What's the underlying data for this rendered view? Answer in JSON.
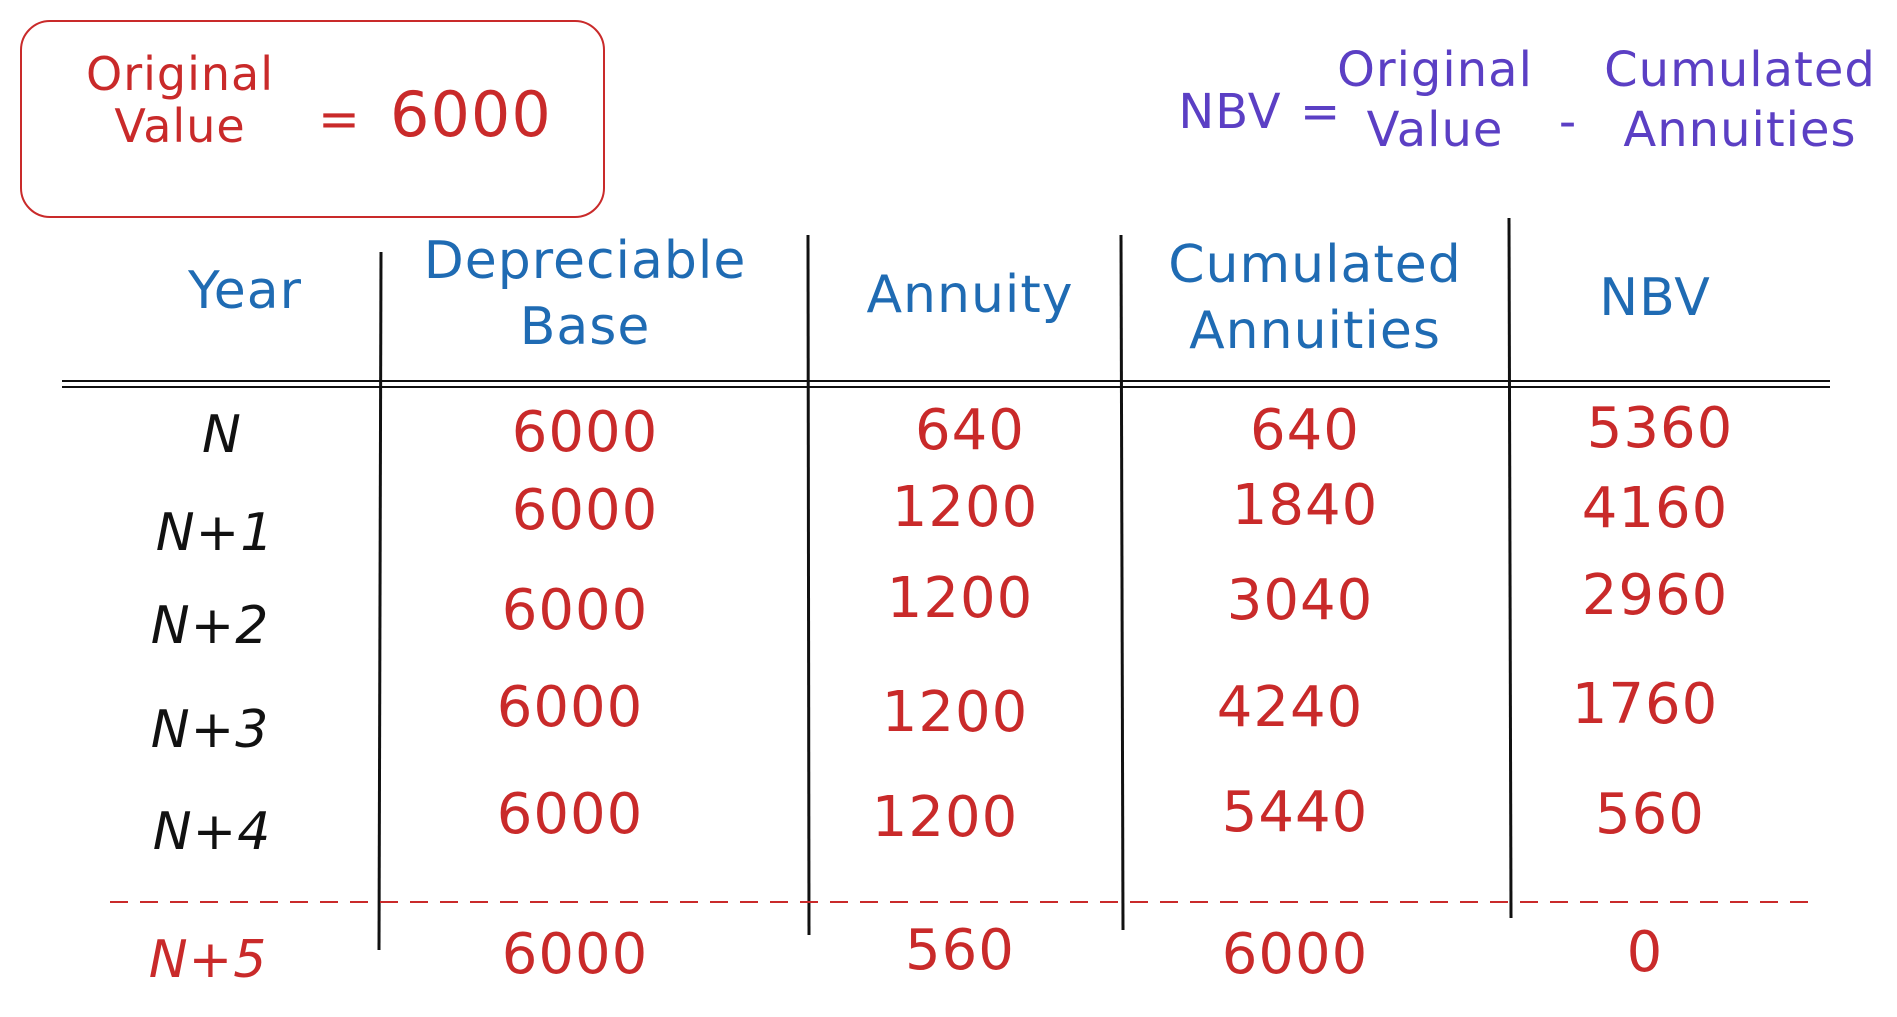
{
  "original_value": {
    "label_line1": "Original",
    "label_line2": "Value",
    "equals": "=",
    "value": "6000"
  },
  "formula": {
    "lhs": "NBV",
    "equals": "=",
    "term1_line1": "Original",
    "term1_line2": "Value",
    "minus": "-",
    "term2_line1": "Cumulated",
    "term2_line2": "Annuities"
  },
  "table": {
    "headers": {
      "year": "Year",
      "depreciable_base_line1": "Depreciable",
      "depreciable_base_line2": "Base",
      "annuity": "Annuity",
      "cumulated_line1": "Cumulated",
      "cumulated_line2": "Annuities",
      "nbv": "NBV"
    },
    "rows": [
      {
        "year": "N",
        "base": "6000",
        "annuity": "640",
        "cumulated": "640",
        "nbv": "5360"
      },
      {
        "year": "N+1",
        "base": "6000",
        "annuity": "1200",
        "cumulated": "1840",
        "nbv": "4160"
      },
      {
        "year": "N+2",
        "base": "6000",
        "annuity": "1200",
        "cumulated": "3040",
        "nbv": "2960"
      },
      {
        "year": "N+3",
        "base": "6000",
        "annuity": "1200",
        "cumulated": "4240",
        "nbv": "1760"
      },
      {
        "year": "N+4",
        "base": "6000",
        "annuity": "1200",
        "cumulated": "5440",
        "nbv": "560"
      },
      {
        "year": "N+5",
        "base": "6000",
        "annuity": "560",
        "cumulated": "6000",
        "nbv": "0"
      }
    ]
  },
  "colors": {
    "red": "#c92a2a",
    "blue": "#1f6bb3",
    "purple": "#5b3fc4",
    "black": "#111111"
  }
}
